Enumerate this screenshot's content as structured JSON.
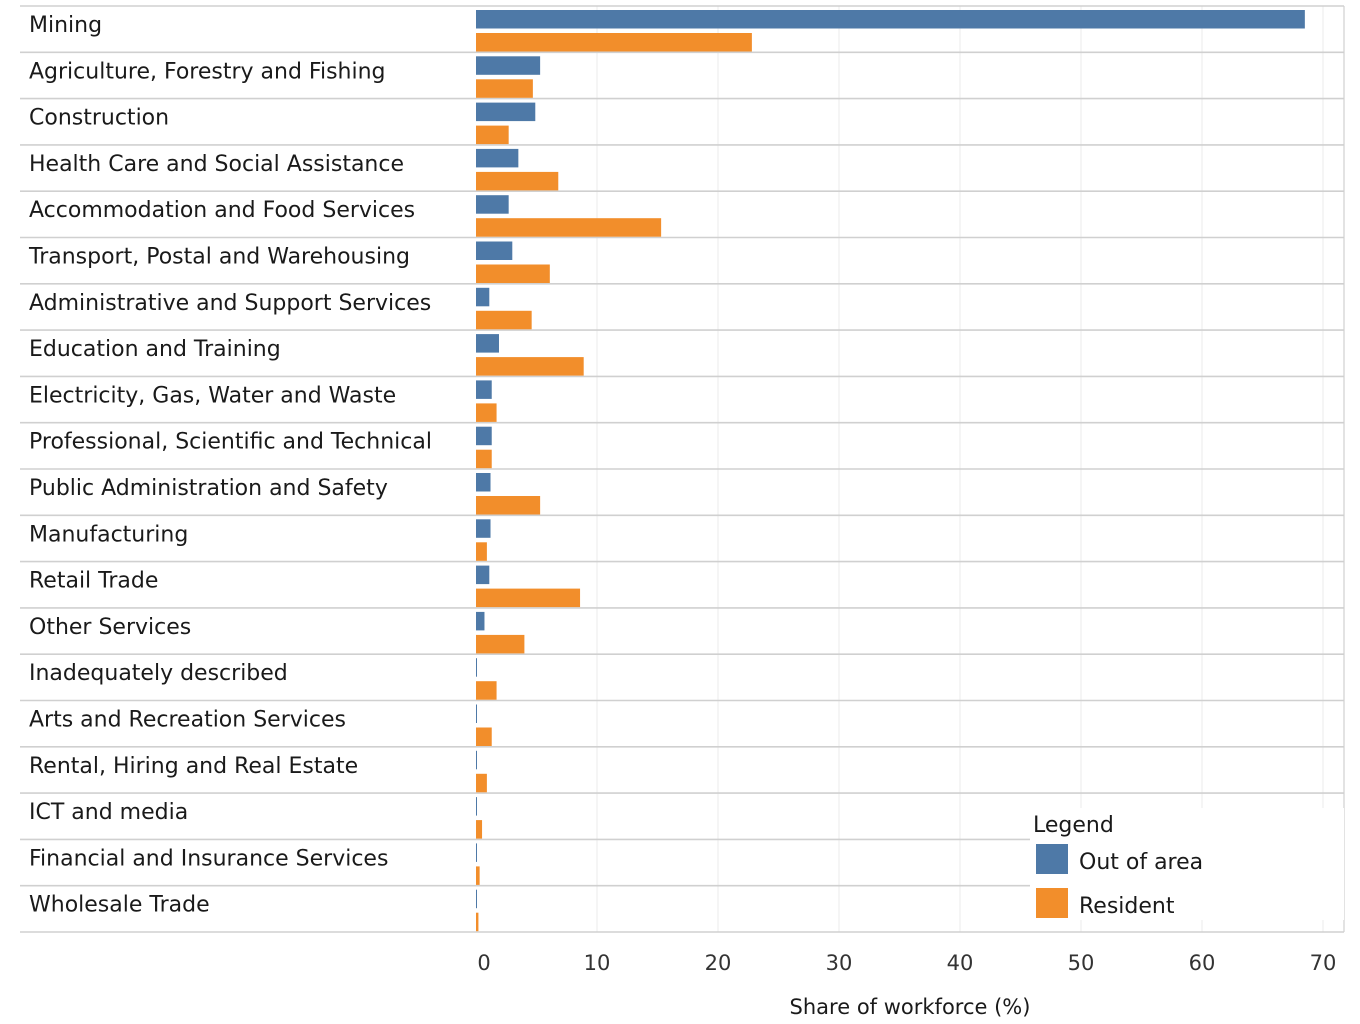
{
  "chart_data": {
    "type": "bar",
    "orientation": "horizontal",
    "categories": [
      "Mining",
      "Agriculture, Forestry and Fishing",
      "Construction",
      "Health Care and Social Assistance",
      "Accommodation and Food Services",
      "Transport, Postal and Warehousing",
      "Administrative and Support Services",
      "Education and Training",
      "Electricity, Gas, Water and Waste",
      "Professional, Scientific and Technical",
      "Public Administration and Safety",
      "Manufacturing",
      "Retail Trade",
      "Other Services",
      "Inadequately described",
      "Arts and Recreation Services",
      "Rental, Hiring and Real Estate",
      "ICT and media",
      "Financial and Insurance Services",
      "Wholesale Trade"
    ],
    "series": [
      {
        "name": "Out of area",
        "color": "#4e79a7",
        "values": [
          68.5,
          5.3,
          4.9,
          3.5,
          2.7,
          3.0,
          1.1,
          1.9,
          1.3,
          1.3,
          1.2,
          1.2,
          1.1,
          0.7,
          0.05,
          0.05,
          0.05,
          0.05,
          0.05,
          0.05
        ]
      },
      {
        "name": "Resident",
        "color": "#f28e2b",
        "values": [
          22.8,
          4.7,
          2.7,
          6.8,
          15.3,
          6.1,
          4.6,
          8.9,
          1.7,
          1.3,
          5.3,
          0.9,
          8.6,
          4.0,
          1.7,
          1.3,
          0.9,
          0.5,
          0.3,
          0.2
        ]
      }
    ],
    "xlabel": "Share of workforce (%)",
    "ylabel": "",
    "xlim": [
      0,
      72
    ],
    "xticks": [
      0,
      10,
      20,
      30,
      40,
      50,
      60,
      70
    ],
    "grid": true,
    "legend": {
      "title": "Legend",
      "placement": "bottom-right"
    }
  }
}
